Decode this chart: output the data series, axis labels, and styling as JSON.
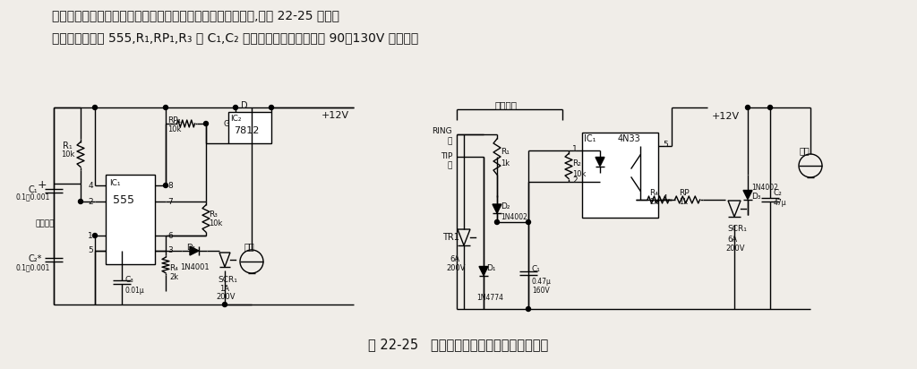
{
  "line1": "本振铃提醒电路由振铃触发电路和可控硅触发电铃电路等构成,如图 22-25 所示。",
  "line2": "振铃触发电路由 555,R₁,RP₁,R₃ 和 C₁,C₂ 等组成。当电话线上送人 90～130V 的交流振",
  "caption": "图 22-25   电话机附加振铃提醒器电路（二）",
  "bg_color": "#f0ede8",
  "text_color": "#111111",
  "fig_width": 10.24,
  "fig_height": 4.12,
  "dpi": 100
}
